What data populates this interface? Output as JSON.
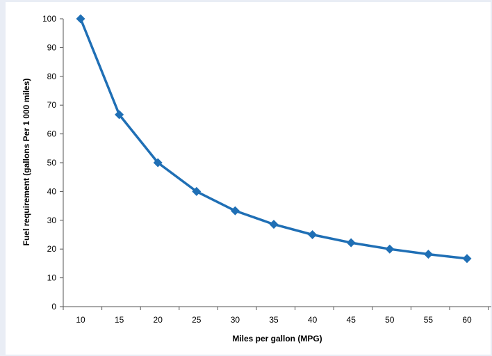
{
  "chart_data": {
    "type": "line",
    "title": "",
    "xlabel": "Miles per gallon (MPG)",
    "ylabel": "Fuel requirement (gallons Per 1 000 miles)",
    "x": [
      "10",
      "15",
      "20",
      "25",
      "30",
      "35",
      "40",
      "45",
      "50",
      "55",
      "60"
    ],
    "series": [
      {
        "values": [
          100,
          66.7,
          50,
          40,
          33.3,
          28.6,
          25,
          22.2,
          20,
          18.2,
          16.7
        ]
      }
    ],
    "ylim": [
      0,
      100
    ],
    "yticks": [
      0,
      10,
      20,
      30,
      40,
      50,
      60,
      70,
      80,
      90,
      100
    ],
    "grid": false,
    "legend": "none",
    "colors": {
      "series": "#1f6fb5",
      "axis": "#555555",
      "background": "#ffffff",
      "border": "#e9edf5"
    }
  }
}
